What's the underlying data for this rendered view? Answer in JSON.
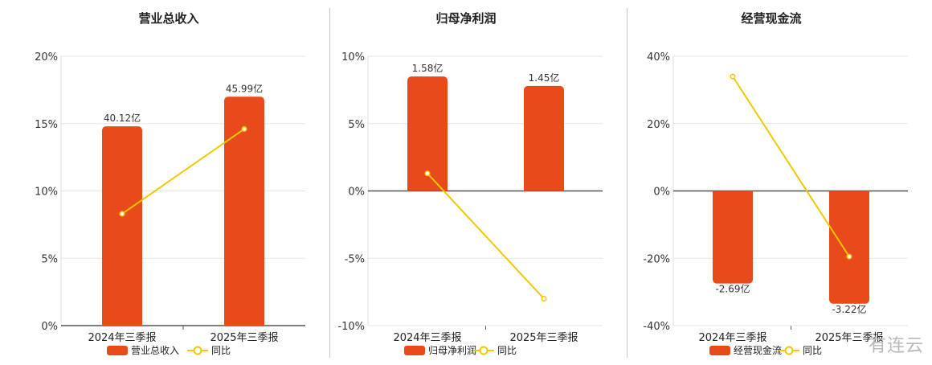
{
  "colors": {
    "bar": "#e84a1c",
    "line": "#f2c800",
    "grid": "#e6e6e6",
    "axis": "#555555"
  },
  "watermark": "有连云",
  "chart_data": [
    {
      "type": "bar",
      "title": "营业总收入",
      "categories": [
        "2024年三季报",
        "2025年三季报"
      ],
      "ylim": [
        0,
        20
      ],
      "yticks": [
        0,
        5,
        10,
        15,
        20
      ],
      "ytick_labels": [
        "0%",
        "5%",
        "10%",
        "15%",
        "20%"
      ],
      "series": [
        {
          "name": "营业总收入",
          "kind": "bar",
          "values": [
            14.8,
            17.0
          ],
          "labels": [
            "40.12亿",
            "45.99亿"
          ]
        },
        {
          "name": "同比",
          "kind": "line",
          "values": [
            8.3,
            14.6
          ]
        }
      ],
      "legend_position": "bottom"
    },
    {
      "type": "bar",
      "title": "归母净利润",
      "categories": [
        "2024年三季报",
        "2025年三季报"
      ],
      "ylim": [
        -10,
        10
      ],
      "yticks": [
        -10,
        -5,
        0,
        5,
        10
      ],
      "ytick_labels": [
        "-10%",
        "-5%",
        "0%",
        "5%",
        "10%"
      ],
      "series": [
        {
          "name": "归母净利润",
          "kind": "bar",
          "values": [
            8.5,
            7.8
          ],
          "labels": [
            "1.58亿",
            "1.45亿"
          ]
        },
        {
          "name": "同比",
          "kind": "line",
          "values": [
            1.3,
            -8.0
          ]
        }
      ],
      "legend_position": "bottom"
    },
    {
      "type": "bar",
      "title": "经营现金流",
      "categories": [
        "2024年三季报",
        "2025年三季报"
      ],
      "ylim": [
        -40,
        40
      ],
      "yticks": [
        -40,
        -20,
        0,
        20,
        40
      ],
      "ytick_labels": [
        "-40%",
        "-20%",
        "0%",
        "20%",
        "40%"
      ],
      "series": [
        {
          "name": "经营现金流",
          "kind": "bar",
          "values": [
            -27.5,
            -33.5
          ],
          "labels": [
            "-2.69亿",
            "-3.22亿"
          ]
        },
        {
          "name": "同比",
          "kind": "line",
          "values": [
            34.0,
            -19.5
          ]
        }
      ],
      "legend_position": "bottom"
    }
  ]
}
